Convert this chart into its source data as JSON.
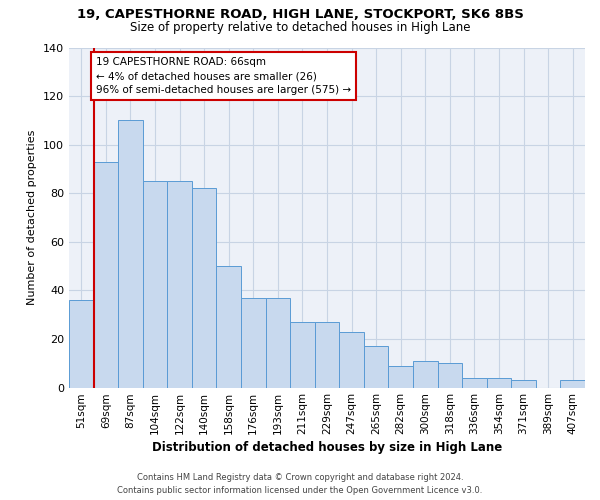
{
  "title1": "19, CAPESTHORNE ROAD, HIGH LANE, STOCKPORT, SK6 8BS",
  "title2": "Size of property relative to detached houses in High Lane",
  "xlabel": "Distribution of detached houses by size in High Lane",
  "ylabel": "Number of detached properties",
  "categories": [
    "51sqm",
    "69sqm",
    "87sqm",
    "104sqm",
    "122sqm",
    "140sqm",
    "158sqm",
    "176sqm",
    "193sqm",
    "211sqm",
    "229sqm",
    "247sqm",
    "265sqm",
    "282sqm",
    "300sqm",
    "318sqm",
    "336sqm",
    "354sqm",
    "371sqm",
    "389sqm",
    "407sqm"
  ],
  "values": [
    36,
    93,
    110,
    85,
    85,
    82,
    50,
    37,
    37,
    27,
    27,
    23,
    17,
    9,
    11,
    10,
    4,
    4,
    3,
    0,
    3
  ],
  "bar_color": "#c8d9ee",
  "bar_edge_color": "#5a9bd5",
  "vline_color": "#cc0000",
  "vline_x": 0.5,
  "annotation_line1": "19 CAPESTHORNE ROAD: 66sqm",
  "annotation_line2": "← 4% of detached houses are smaller (26)",
  "annotation_line3": "96% of semi-detached houses are larger (575) →",
  "ylim": [
    0,
    140
  ],
  "yticks": [
    0,
    20,
    40,
    60,
    80,
    100,
    120,
    140
  ],
  "grid_color": "#c8d4e4",
  "bg_color": "#edf1f8",
  "footer1": "Contains HM Land Registry data © Crown copyright and database right 2024.",
  "footer2": "Contains public sector information licensed under the Open Government Licence v3.0."
}
